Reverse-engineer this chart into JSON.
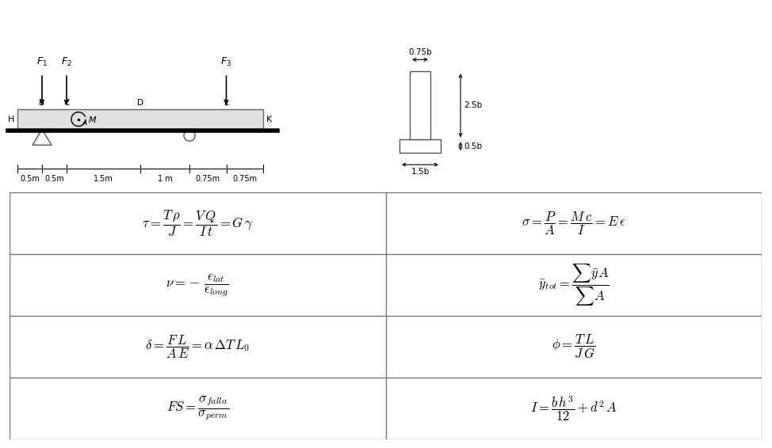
{
  "bg_color": "#ffffff",
  "formulas_left": [
    "\\tau = \\dfrac{T\\,\\rho}{J} = \\dfrac{V\\,Q}{I\\,t} = G\\,\\gamma",
    "\\nu = -\\,\\dfrac{\\epsilon_{lat}}{\\epsilon_{long}}",
    "\\delta = \\dfrac{F\\,L}{A\\,E} = \\alpha\\,\\Delta T\\,L_0",
    "FS = \\dfrac{\\sigma_{falla}}{\\sigma_{perm}}"
  ],
  "formulas_right": [
    "\\sigma = \\dfrac{P}{A} = \\dfrac{M\\,c}{I} = E\\,\\epsilon",
    "\\bar{y}_{tot} = \\dfrac{\\sum \\bar{y}A}{\\sum A}",
    "\\phi = \\dfrac{T\\,L}{J\\,G}",
    "I = \\dfrac{b\\,h^3}{12} + d^2\\,A"
  ]
}
